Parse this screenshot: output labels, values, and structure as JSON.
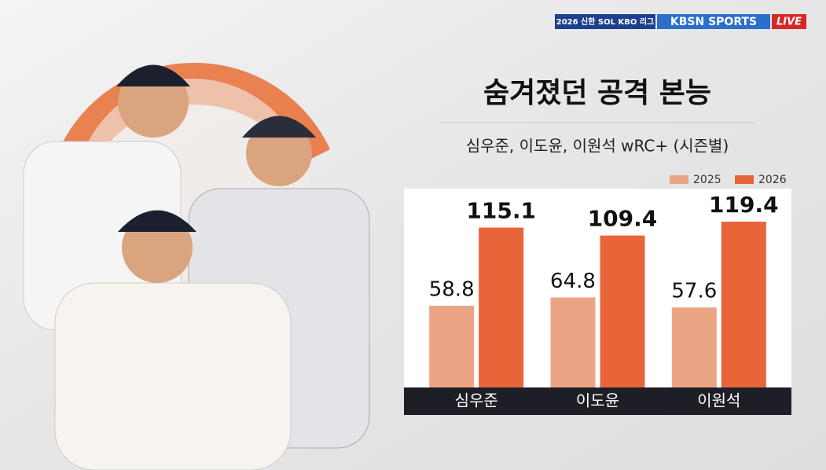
{
  "broadcast": {
    "league": "2026 신한 SOL KBO 리그",
    "network": "KBSN SPORTS",
    "live": "LIVE"
  },
  "chart_data": {
    "type": "bar",
    "title": "숨겨졌던 공격 본능",
    "subtitle": "심우준, 이도윤, 이원석 wRC+ (시즌별)",
    "categories": [
      "심우준",
      "이도윤",
      "이원석"
    ],
    "series": [
      {
        "name": "2025",
        "color": "#eba585",
        "values": [
          58.8,
          64.8,
          57.6
        ]
      },
      {
        "name": "2026",
        "color": "#e8653a",
        "values": [
          115.1,
          109.4,
          119.4
        ]
      }
    ]
  }
}
